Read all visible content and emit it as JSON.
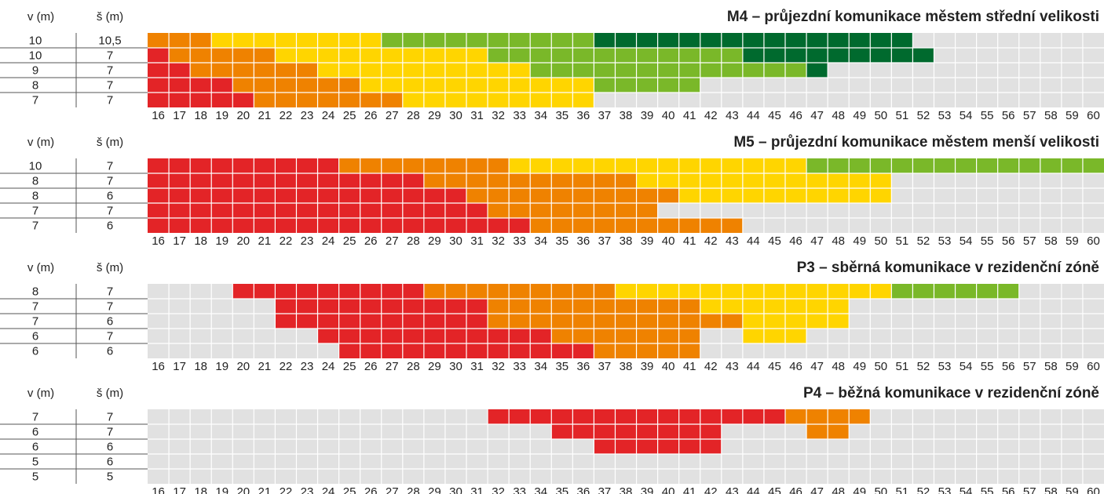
{
  "chart_data": [
    {
      "type": "heatmap",
      "title": "M4 – průjezdní komunikace městem střední velikosti",
      "row_headers": [
        "v (m)",
        "š (m)"
      ],
      "x": [
        16,
        17,
        18,
        19,
        20,
        21,
        22,
        23,
        24,
        25,
        26,
        27,
        28,
        29,
        30,
        31,
        32,
        33,
        34,
        35,
        36,
        37,
        38,
        39,
        40,
        41,
        42,
        43,
        44,
        45,
        46,
        47,
        48,
        49,
        50,
        51,
        52,
        53,
        54,
        55,
        56,
        57,
        58,
        59,
        60
      ],
      "empty_color": "#e1e1e1",
      "rows": [
        {
          "v": "10",
          "s": "10,5",
          "segments": [
            {
              "from": 16,
              "to": 18,
              "color": "#ef8200"
            },
            {
              "from": 19,
              "to": 26,
              "color": "#ffd500"
            },
            {
              "from": 27,
              "to": 36,
              "color": "#7ab829"
            },
            {
              "from": 37,
              "to": 51,
              "color": "#006a2e"
            }
          ]
        },
        {
          "v": "10",
          "s": "7",
          "segments": [
            {
              "from": 16,
              "to": 16,
              "color": "#e32427"
            },
            {
              "from": 17,
              "to": 21,
              "color": "#ef8200"
            },
            {
              "from": 22,
              "to": 31,
              "color": "#ffd500"
            },
            {
              "from": 32,
              "to": 43,
              "color": "#7ab829"
            },
            {
              "from": 44,
              "to": 52,
              "color": "#006a2e"
            }
          ]
        },
        {
          "v": "9",
          "s": "7",
          "segments": [
            {
              "from": 16,
              "to": 17,
              "color": "#e32427"
            },
            {
              "from": 18,
              "to": 23,
              "color": "#ef8200"
            },
            {
              "from": 24,
              "to": 33,
              "color": "#ffd500"
            },
            {
              "from": 34,
              "to": 46,
              "color": "#7ab829"
            },
            {
              "from": 47,
              "to": 47,
              "color": "#006a2e"
            }
          ]
        },
        {
          "v": "8",
          "s": "7",
          "segments": [
            {
              "from": 16,
              "to": 19,
              "color": "#e32427"
            },
            {
              "from": 20,
              "to": 25,
              "color": "#ef8200"
            },
            {
              "from": 26,
              "to": 36,
              "color": "#ffd500"
            },
            {
              "from": 37,
              "to": 41,
              "color": "#7ab829"
            }
          ]
        },
        {
          "v": "7",
          "s": "7",
          "segments": [
            {
              "from": 16,
              "to": 20,
              "color": "#e32427"
            },
            {
              "from": 21,
              "to": 27,
              "color": "#ef8200"
            },
            {
              "from": 28,
              "to": 36,
              "color": "#ffd500"
            }
          ]
        }
      ]
    },
    {
      "type": "heatmap",
      "title": "M5 – průjezdní komunikace městem menší velikosti",
      "row_headers": [
        "v (m)",
        "š (m)"
      ],
      "x": [
        16,
        17,
        18,
        19,
        20,
        21,
        22,
        23,
        24,
        25,
        26,
        27,
        28,
        29,
        30,
        31,
        32,
        33,
        34,
        35,
        36,
        37,
        38,
        39,
        40,
        41,
        42,
        43,
        44,
        45,
        46,
        47,
        48,
        49,
        50,
        51,
        52,
        53,
        54,
        55,
        56,
        57,
        58,
        59,
        60
      ],
      "empty_color": "#e1e1e1",
      "rows": [
        {
          "v": "10",
          "s": "7",
          "segments": [
            {
              "from": 16,
              "to": 24,
              "color": "#e32427"
            },
            {
              "from": 25,
              "to": 32,
              "color": "#ef8200"
            },
            {
              "from": 33,
              "to": 46,
              "color": "#ffd500"
            },
            {
              "from": 47,
              "to": 60,
              "color": "#7ab829"
            }
          ]
        },
        {
          "v": "8",
          "s": "7",
          "segments": [
            {
              "from": 16,
              "to": 28,
              "color": "#e32427"
            },
            {
              "from": 29,
              "to": 38,
              "color": "#ef8200"
            },
            {
              "from": 39,
              "to": 50,
              "color": "#ffd500"
            }
          ]
        },
        {
          "v": "8",
          "s": "6",
          "segments": [
            {
              "from": 16,
              "to": 30,
              "color": "#e32427"
            },
            {
              "from": 31,
              "to": 40,
              "color": "#ef8200"
            },
            {
              "from": 41,
              "to": 50,
              "color": "#ffd500"
            }
          ]
        },
        {
          "v": "7",
          "s": "7",
          "segments": [
            {
              "from": 16,
              "to": 31,
              "color": "#e32427"
            },
            {
              "from": 32,
              "to": 39,
              "color": "#ef8200"
            }
          ]
        },
        {
          "v": "7",
          "s": "6",
          "segments": [
            {
              "from": 16,
              "to": 33,
              "color": "#e32427"
            },
            {
              "from": 34,
              "to": 43,
              "color": "#ef8200"
            }
          ]
        }
      ]
    },
    {
      "type": "heatmap",
      "title": "P3 – sběrná komunikace v rezidenční zóně",
      "row_headers": [
        "v (m)",
        "š (m)"
      ],
      "x": [
        16,
        17,
        18,
        19,
        20,
        21,
        22,
        23,
        24,
        25,
        26,
        27,
        28,
        29,
        30,
        31,
        32,
        33,
        34,
        35,
        36,
        37,
        38,
        39,
        40,
        41,
        42,
        43,
        44,
        45,
        46,
        47,
        48,
        49,
        50,
        51,
        52,
        53,
        54,
        55,
        56,
        57,
        58,
        59,
        60
      ],
      "empty_color": "#e1e1e1",
      "rows": [
        {
          "v": "8",
          "s": "7",
          "segments": [
            {
              "from": 20,
              "to": 28,
              "color": "#e32427"
            },
            {
              "from": 29,
              "to": 37,
              "color": "#ef8200"
            },
            {
              "from": 38,
              "to": 50,
              "color": "#ffd500"
            },
            {
              "from": 51,
              "to": 56,
              "color": "#7ab829"
            }
          ]
        },
        {
          "v": "7",
          "s": "7",
          "segments": [
            {
              "from": 22,
              "to": 31,
              "color": "#e32427"
            },
            {
              "from": 32,
              "to": 41,
              "color": "#ef8200"
            },
            {
              "from": 42,
              "to": 48,
              "color": "#ffd500"
            }
          ]
        },
        {
          "v": "7",
          "s": "6",
          "segments": [
            {
              "from": 22,
              "to": 31,
              "color": "#e32427"
            },
            {
              "from": 32,
              "to": 43,
              "color": "#ef8200"
            },
            {
              "from": 44,
              "to": 48,
              "color": "#ffd500"
            }
          ]
        },
        {
          "v": "6",
          "s": "7",
          "segments": [
            {
              "from": 24,
              "to": 34,
              "color": "#e32427"
            },
            {
              "from": 35,
              "to": 41,
              "color": "#ef8200"
            },
            {
              "from": 44,
              "to": 46,
              "color": "#ffd500"
            }
          ]
        },
        {
          "v": "6",
          "s": "6",
          "segments": [
            {
              "from": 25,
              "to": 36,
              "color": "#e32427"
            },
            {
              "from": 37,
              "to": 41,
              "color": "#ef8200"
            }
          ]
        }
      ]
    },
    {
      "type": "heatmap",
      "title": "P4 – běžná komunikace v rezidenční zóně",
      "row_headers": [
        "v (m)",
        "š (m)"
      ],
      "x": [
        16,
        17,
        18,
        19,
        20,
        21,
        22,
        23,
        24,
        25,
        26,
        27,
        28,
        29,
        30,
        31,
        32,
        33,
        34,
        35,
        36,
        37,
        38,
        39,
        40,
        41,
        42,
        43,
        44,
        45,
        46,
        47,
        48,
        49,
        50,
        51,
        52,
        53,
        54,
        55,
        56,
        57,
        58,
        59,
        60
      ],
      "empty_color": "#e1e1e1",
      "rows": [
        {
          "v": "7",
          "s": "7",
          "segments": [
            {
              "from": 32,
              "to": 45,
              "color": "#e32427"
            },
            {
              "from": 46,
              "to": 49,
              "color": "#ef8200"
            }
          ]
        },
        {
          "v": "6",
          "s": "7",
          "segments": [
            {
              "from": 35,
              "to": 42,
              "color": "#e32427"
            },
            {
              "from": 47,
              "to": 48,
              "color": "#ef8200"
            }
          ]
        },
        {
          "v": "6",
          "s": "6",
          "segments": [
            {
              "from": 37,
              "to": 42,
              "color": "#e32427"
            }
          ]
        },
        {
          "v": "5",
          "s": "6",
          "segments": []
        },
        {
          "v": "5",
          "s": "5",
          "segments": []
        }
      ]
    }
  ]
}
